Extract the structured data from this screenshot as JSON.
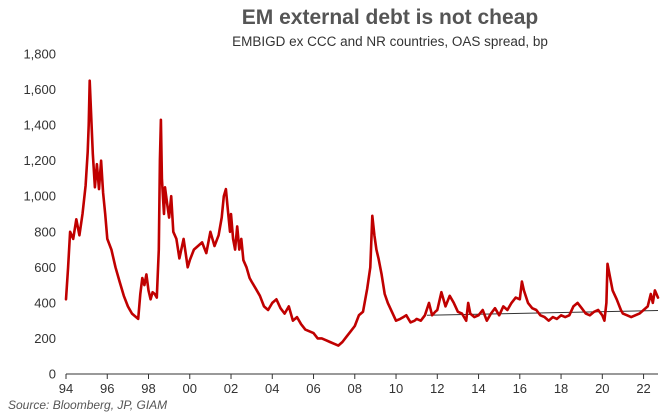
{
  "chart_data": {
    "type": "line",
    "title": "EM external debt is not cheap",
    "subtitle": "EMBIGD ex CCC and NR countries, OAS spread, bp",
    "source": "Source: Bloomberg, JP, GIAM",
    "xlabel": "",
    "ylabel": "",
    "xlim": [
      1994.0,
      2022.7
    ],
    "ylim": [
      0,
      1800
    ],
    "grid": false,
    "x_tick_labels": [
      "94",
      "96",
      "98",
      "00",
      "02",
      "04",
      "06",
      "08",
      "10",
      "12",
      "14",
      "16",
      "18",
      "20",
      "22"
    ],
    "y_tick_labels": [
      "0",
      "200",
      "400",
      "600",
      "800",
      "1,000",
      "1,200",
      "1,400",
      "1,600",
      "1,800"
    ],
    "series": [
      {
        "color": "#c00000",
        "x": [
          1994.0,
          1994.1,
          1994.2,
          1994.35,
          1994.5,
          1994.65,
          1994.8,
          1994.95,
          1995.05,
          1995.1,
          1995.15,
          1995.22,
          1995.3,
          1995.4,
          1995.5,
          1995.6,
          1995.7,
          1995.8,
          1995.9,
          1996.0,
          1996.2,
          1996.4,
          1996.6,
          1996.8,
          1997.0,
          1997.2,
          1997.4,
          1997.5,
          1997.6,
          1997.7,
          1997.8,
          1997.9,
          1998.0,
          1998.1,
          1998.2,
          1998.3,
          1998.4,
          1998.5,
          1998.55,
          1998.6,
          1998.65,
          1998.7,
          1998.75,
          1998.8,
          1998.9,
          1999.0,
          1999.1,
          1999.2,
          1999.35,
          1999.5,
          1999.7,
          1999.9,
          2000.0,
          2000.2,
          2000.4,
          2000.6,
          2000.8,
          2001.0,
          2001.2,
          2001.4,
          2001.55,
          2001.65,
          2001.75,
          2001.85,
          2001.95,
          2002.0,
          2002.1,
          2002.2,
          2002.3,
          2002.4,
          2002.5,
          2002.6,
          2002.75,
          2002.9,
          2003.0,
          2003.2,
          2003.4,
          2003.6,
          2003.8,
          2004.0,
          2004.2,
          2004.4,
          2004.6,
          2004.8,
          2005.0,
          2005.2,
          2005.4,
          2005.6,
          2005.8,
          2006.0,
          2006.2,
          2006.4,
          2006.6,
          2006.8,
          2007.0,
          2007.2,
          2007.4,
          2007.6,
          2007.8,
          2008.0,
          2008.2,
          2008.4,
          2008.6,
          2008.75,
          2008.85,
          2008.95,
          2009.05,
          2009.15,
          2009.3,
          2009.45,
          2009.6,
          2009.8,
          2010.0,
          2010.2,
          2010.35,
          2010.5,
          2010.7,
          2010.9,
          2011.0,
          2011.2,
          2011.4,
          2011.6,
          2011.75,
          2011.9,
          2012.0,
          2012.2,
          2012.4,
          2012.6,
          2012.8,
          2013.0,
          2013.2,
          2013.4,
          2013.5,
          2013.6,
          2013.8,
          2014.0,
          2014.2,
          2014.4,
          2014.6,
          2014.8,
          2015.0,
          2015.2,
          2015.4,
          2015.6,
          2015.8,
          2016.0,
          2016.1,
          2016.2,
          2016.4,
          2016.6,
          2016.8,
          2017.0,
          2017.2,
          2017.4,
          2017.6,
          2017.8,
          2018.0,
          2018.2,
          2018.4,
          2018.6,
          2018.8,
          2019.0,
          2019.2,
          2019.4,
          2019.6,
          2019.8,
          2020.0,
          2020.1,
          2020.2,
          2020.25,
          2020.35,
          2020.5,
          2020.7,
          2020.9,
          2021.0,
          2021.2,
          2021.4,
          2021.6,
          2021.8,
          2022.0,
          2022.2,
          2022.35,
          2022.45,
          2022.55,
          2022.7
        ],
        "values": [
          420,
          600,
          800,
          760,
          870,
          780,
          900,
          1060,
          1250,
          1400,
          1650,
          1450,
          1240,
          1050,
          1180,
          1040,
          1200,
          1020,
          900,
          760,
          700,
          600,
          520,
          440,
          380,
          340,
          320,
          310,
          450,
          540,
          500,
          560,
          470,
          420,
          460,
          450,
          430,
          700,
          1200,
          1430,
          1100,
          1000,
          900,
          1050,
          960,
          880,
          1000,
          800,
          760,
          650,
          760,
          600,
          640,
          700,
          720,
          740,
          680,
          800,
          720,
          780,
          880,
          1000,
          1040,
          920,
          800,
          900,
          760,
          700,
          830,
          700,
          760,
          640,
          600,
          540,
          520,
          480,
          440,
          380,
          360,
          400,
          420,
          370,
          340,
          380,
          300,
          320,
          280,
          250,
          240,
          230,
          200,
          200,
          190,
          180,
          170,
          160,
          180,
          210,
          240,
          270,
          330,
          350,
          480,
          600,
          890,
          780,
          700,
          650,
          560,
          450,
          400,
          350,
          300,
          310,
          320,
          330,
          290,
          300,
          310,
          300,
          330,
          400,
          330,
          350,
          360,
          460,
          380,
          440,
          400,
          350,
          340,
          300,
          400,
          340,
          320,
          330,
          360,
          300,
          340,
          370,
          330,
          380,
          360,
          400,
          430,
          420,
          520,
          470,
          400,
          370,
          360,
          330,
          320,
          300,
          320,
          310,
          330,
          320,
          330,
          380,
          400,
          370,
          340,
          330,
          350,
          360,
          330,
          300,
          400,
          620,
          560,
          470,
          420,
          360,
          340,
          330,
          320,
          330,
          340,
          360,
          380,
          450,
          400,
          470,
          430
        ],
        "name": ""
      }
    ],
    "reference_line": {
      "color": "#333333",
      "x": [
        2011.5,
        2022.7
      ],
      "values": [
        330,
        357
      ]
    }
  }
}
